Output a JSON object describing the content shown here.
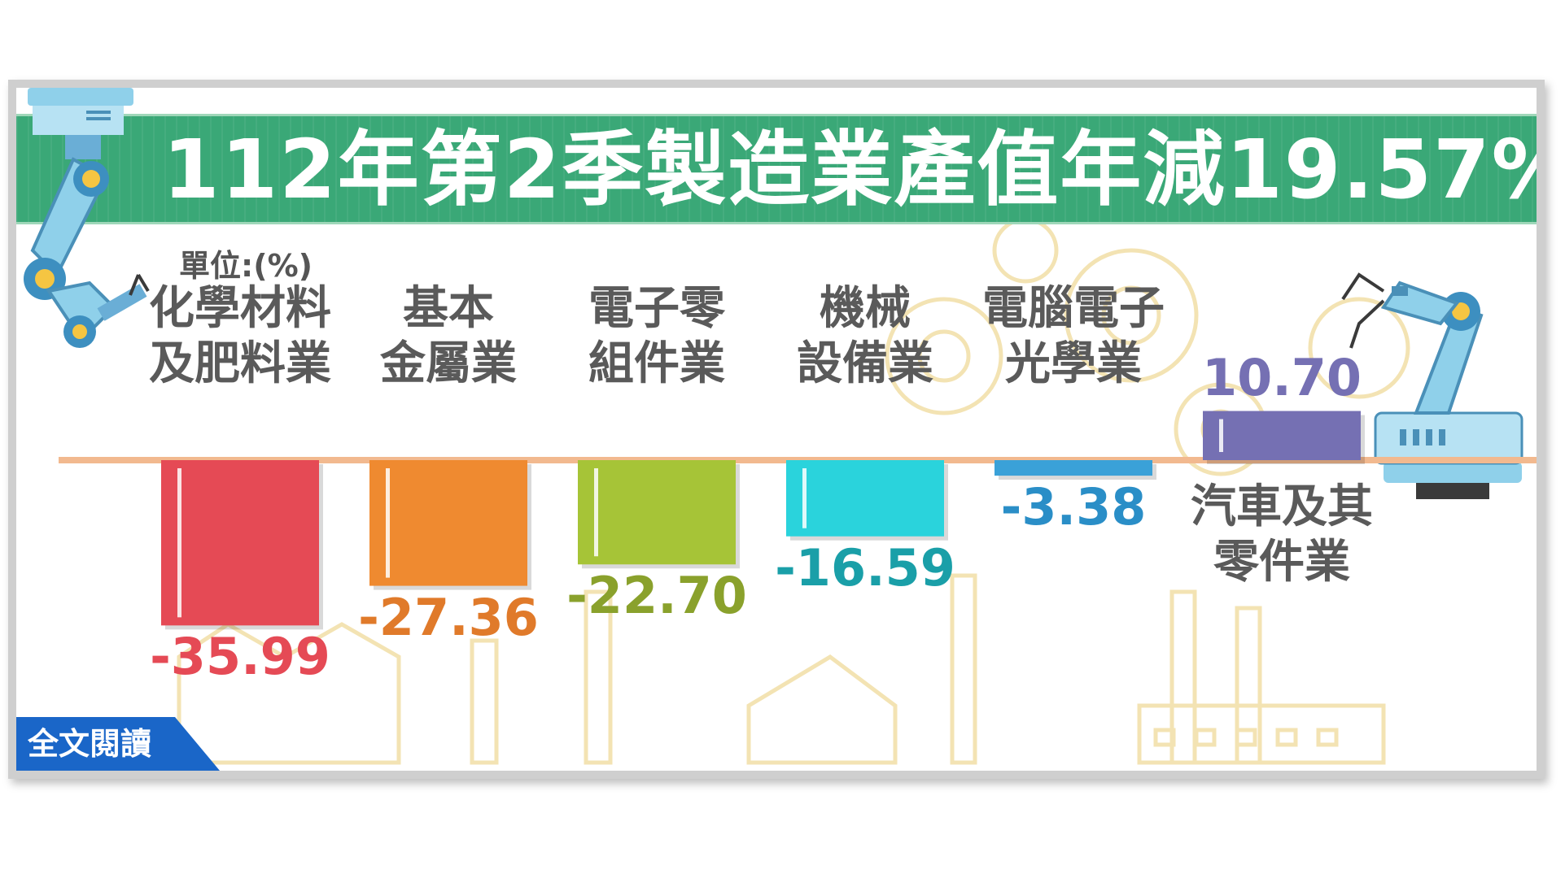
{
  "title": "112年第2季製造業產值年減19.57%",
  "unit_label": "單位:(%)",
  "read_more_label": "全文閱讀",
  "chart_data": {
    "type": "bar",
    "title": "112年第2季製造業產值年減19.57%",
    "ylabel": "單位:(%)",
    "categories": [
      "化學材料\n及肥料業",
      "基本\n金屬業",
      "電子零\n組件業",
      "機械\n設備業",
      "電腦電子\n光學業",
      "汽車及其\n零件業"
    ],
    "values": [
      -35.99,
      -27.36,
      -22.7,
      -16.59,
      -3.38,
      10.7
    ],
    "value_labels": [
      "-35.99",
      "-27.36",
      "-22.70",
      "-16.59",
      "-3.38",
      "10.70"
    ],
    "colors": [
      "#e54a55",
      "#ef8a30",
      "#a6c437",
      "#2ad3dc",
      "#3aa1d8",
      "#7570b3"
    ],
    "label_colors": [
      "#e54a55",
      "#e07a2a",
      "#8aa12c",
      "#1a9fa8",
      "#2a8ec7",
      "#7570b3"
    ],
    "ylim": [
      -40,
      12
    ],
    "legend": "none",
    "grid": false
  }
}
